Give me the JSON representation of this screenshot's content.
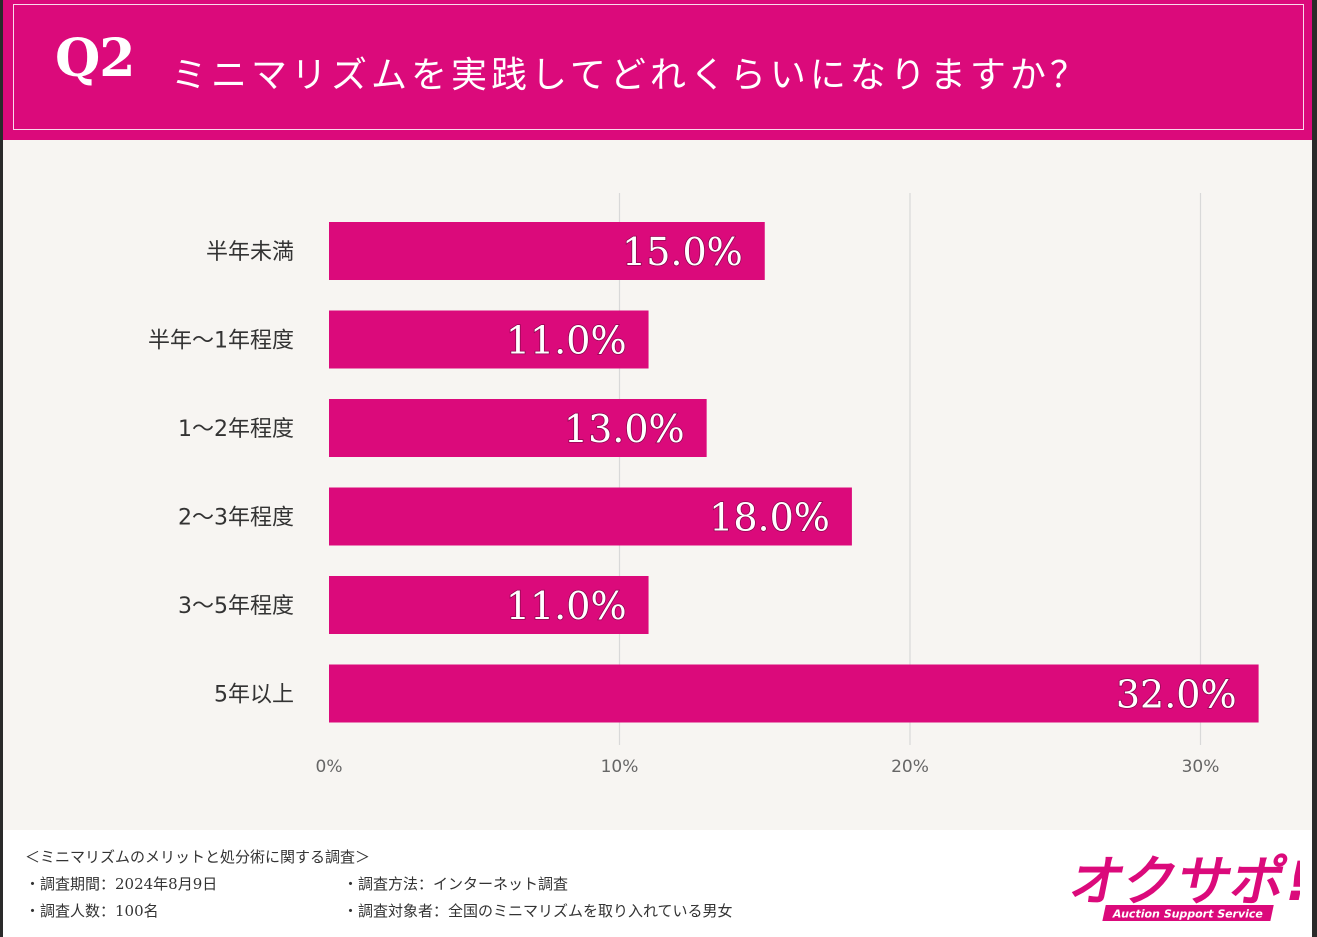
{
  "header": {
    "q_number": "Q2",
    "question": "ミニマリズムを実践してどれくらいになりますか？"
  },
  "chart_data": {
    "type": "bar",
    "orientation": "horizontal",
    "categories": [
      "半年未満",
      "半年〜1年程度",
      "1〜2年程度",
      "2〜3年程度",
      "3〜5年程度",
      "5年以上"
    ],
    "values": [
      15.0,
      11.0,
      13.0,
      18.0,
      11.0,
      32.0
    ],
    "value_labels": [
      "15.0%",
      "11.0%",
      "13.0%",
      "18.0%",
      "11.0%",
      "32.0%"
    ],
    "x_ticks": [
      0,
      10,
      20,
      30
    ],
    "x_tick_labels": [
      "0%",
      "10%",
      "20%",
      "30%"
    ],
    "xlim": [
      0,
      32
    ],
    "grid": "vertical",
    "bar_color": "#db0a7b"
  },
  "footer": {
    "survey_title": "＜ミニマリズムのメリットと処分術に関する調査＞",
    "period": "・調査期間：2024年8月9日",
    "respondents": "・調査人数：100名",
    "method": "・調査方法：インターネット調査",
    "target": "・調査対象者：全国のミニマリズムを取り入れている男女"
  },
  "logo": {
    "text": "オクサポ!",
    "subtext": "Auction Support Service"
  },
  "colors": {
    "accent": "#db0a7b",
    "background": "#f7f5f2"
  }
}
